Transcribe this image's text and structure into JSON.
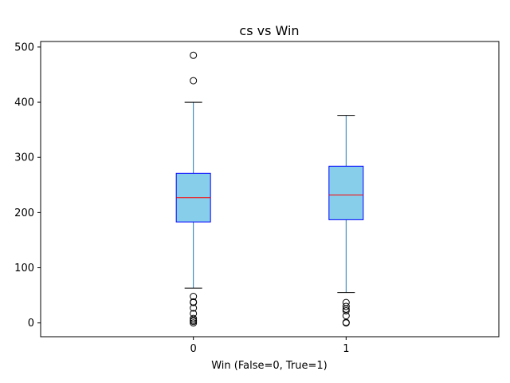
{
  "chart_data": {
    "type": "box",
    "title": "cs vs Win",
    "xlabel": "Win (False=0, True=1)",
    "ylabel": "",
    "categories": [
      "0",
      "1"
    ],
    "ylim": [
      -25,
      510
    ],
    "yticks": [
      0,
      100,
      200,
      300,
      400,
      500
    ],
    "ytick_labels": [
      "0",
      "100",
      "200",
      "300",
      "400",
      "500"
    ],
    "grid": false,
    "legend": "none",
    "colors": {
      "box_fill": "#87ceeb",
      "box_edge": "#0000ff",
      "median": "#ff0000",
      "whisker": "#1f77b4",
      "cap": "#000000",
      "flier": "#000000"
    },
    "boxes": [
      {
        "category": "0",
        "whisker_low": 63,
        "q1": 183,
        "median": 227,
        "q3": 271,
        "whisker_high": 400,
        "outliers": [
          485,
          439,
          48,
          38,
          37,
          27,
          17,
          8,
          5,
          3,
          0
        ]
      },
      {
        "category": "1",
        "whisker_low": 55,
        "q1": 187,
        "median": 232,
        "q3": 284,
        "whisker_high": 376,
        "outliers": [
          37,
          30,
          25,
          22,
          13,
          1,
          0
        ]
      }
    ]
  }
}
